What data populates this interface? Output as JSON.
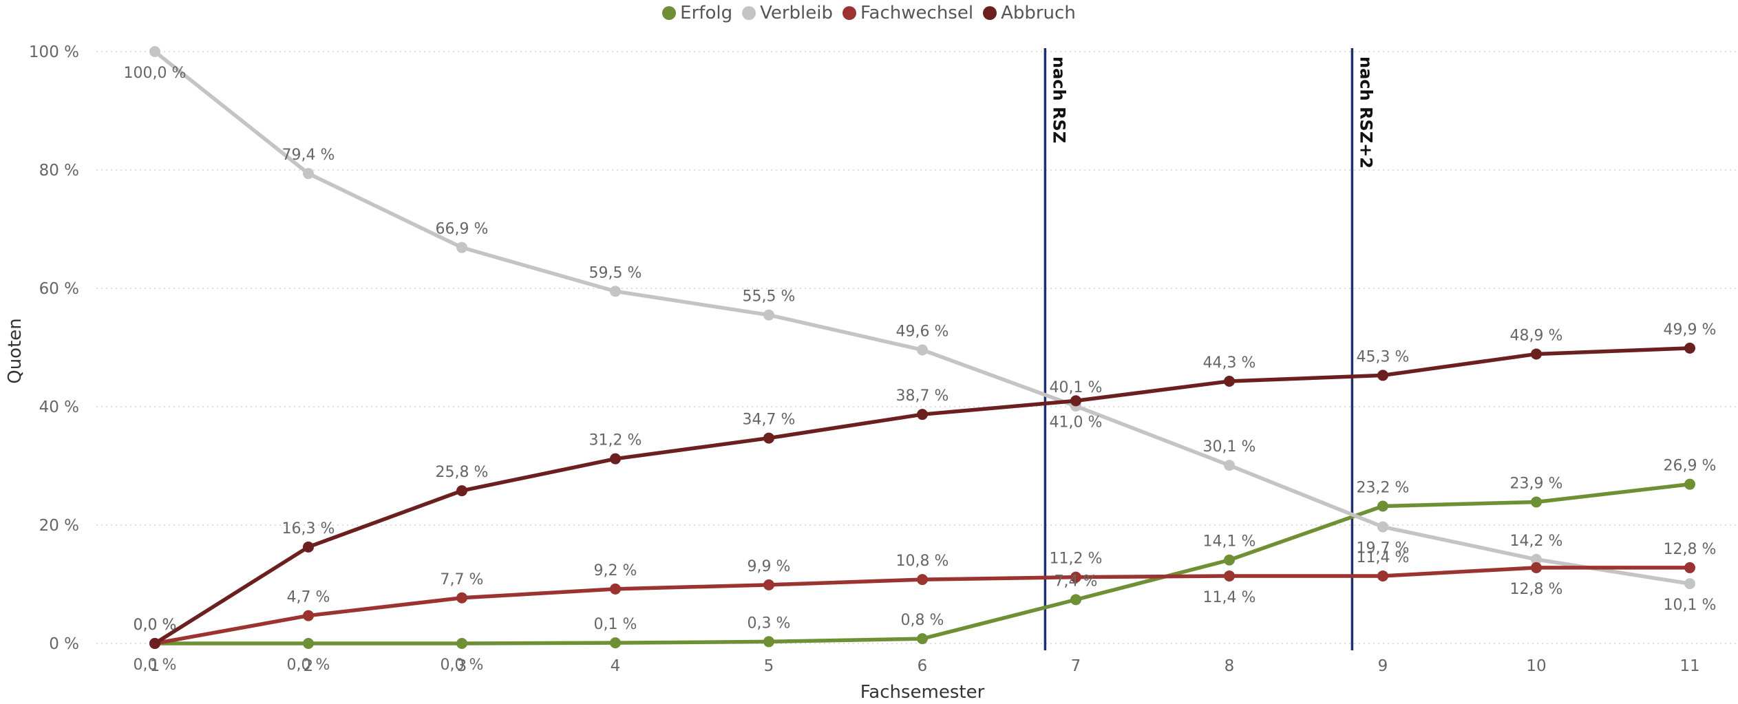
{
  "chart_data": {
    "type": "line",
    "xlabel": "Fachsemester",
    "ylabel": "Quoten",
    "x": [
      1,
      2,
      3,
      4,
      5,
      6,
      7,
      8,
      9,
      10,
      11
    ],
    "ylim": [
      0,
      100
    ],
    "yticks": [
      "0 %",
      "20 %",
      "40 %",
      "60 %",
      "80 %",
      "100 %"
    ],
    "ytick_values": [
      0,
      20,
      40,
      60,
      80,
      100
    ],
    "grid": true,
    "legend_position": "top-center",
    "series": [
      {
        "name": "Erfolg",
        "color": "#6f8f35",
        "values": [
          0.0,
          0.0,
          0.0,
          0.1,
          0.3,
          0.8,
          7.4,
          14.1,
          23.2,
          23.9,
          26.9
        ],
        "labels": [
          "0,0 %",
          "0,0 %",
          "0,0 %",
          "0,1 %",
          "0,3 %",
          "0,8 %",
          "7,4 %",
          "14,1 %",
          "23,2 %",
          "23,9 %",
          "26,9 %"
        ]
      },
      {
        "name": "Verbleib",
        "color": "#c4c4c4",
        "values": [
          100.0,
          79.4,
          66.9,
          59.5,
          55.5,
          49.6,
          40.1,
          30.1,
          19.7,
          14.2,
          10.1
        ],
        "labels": [
          "100,0 %",
          "79,4 %",
          "66,9 %",
          "59,5 %",
          "55,5 %",
          "49,6 %",
          "40,1 %",
          "30,1 %",
          "19,7 %",
          "14,2 %",
          "10,1 %"
        ]
      },
      {
        "name": "Fachwechsel",
        "color": "#9b3331",
        "values": [
          0.0,
          4.7,
          7.7,
          9.2,
          9.9,
          10.8,
          11.2,
          11.4,
          11.4,
          12.8,
          12.8
        ],
        "labels": [
          "0,0 %",
          "4,7 %",
          "7,7 %",
          "9,2 %",
          "9,9 %",
          "10,8 %",
          "11,2 %",
          "11,4 %",
          "11,4 %",
          "12,8 %",
          "12,8 %"
        ]
      },
      {
        "name": "Abbruch",
        "color": "#6b1f1f",
        "values": [
          0.0,
          16.3,
          25.8,
          31.2,
          34.7,
          38.7,
          41.0,
          44.3,
          45.3,
          48.9,
          49.9
        ],
        "labels": [
          "0,0 %",
          "16,3 %",
          "25,8 %",
          "31,2 %",
          "34,7 %",
          "38,7 %",
          "41,0 %",
          "44,3 %",
          "45,3 %",
          "48,9 %",
          "49,9 %"
        ]
      }
    ],
    "reference_lines": [
      {
        "label": "nach RSZ",
        "x": 6.8,
        "color": "#1f2f6b"
      },
      {
        "label": "nach RSZ+2",
        "x": 8.8,
        "color": "#1f2f6b"
      }
    ]
  }
}
